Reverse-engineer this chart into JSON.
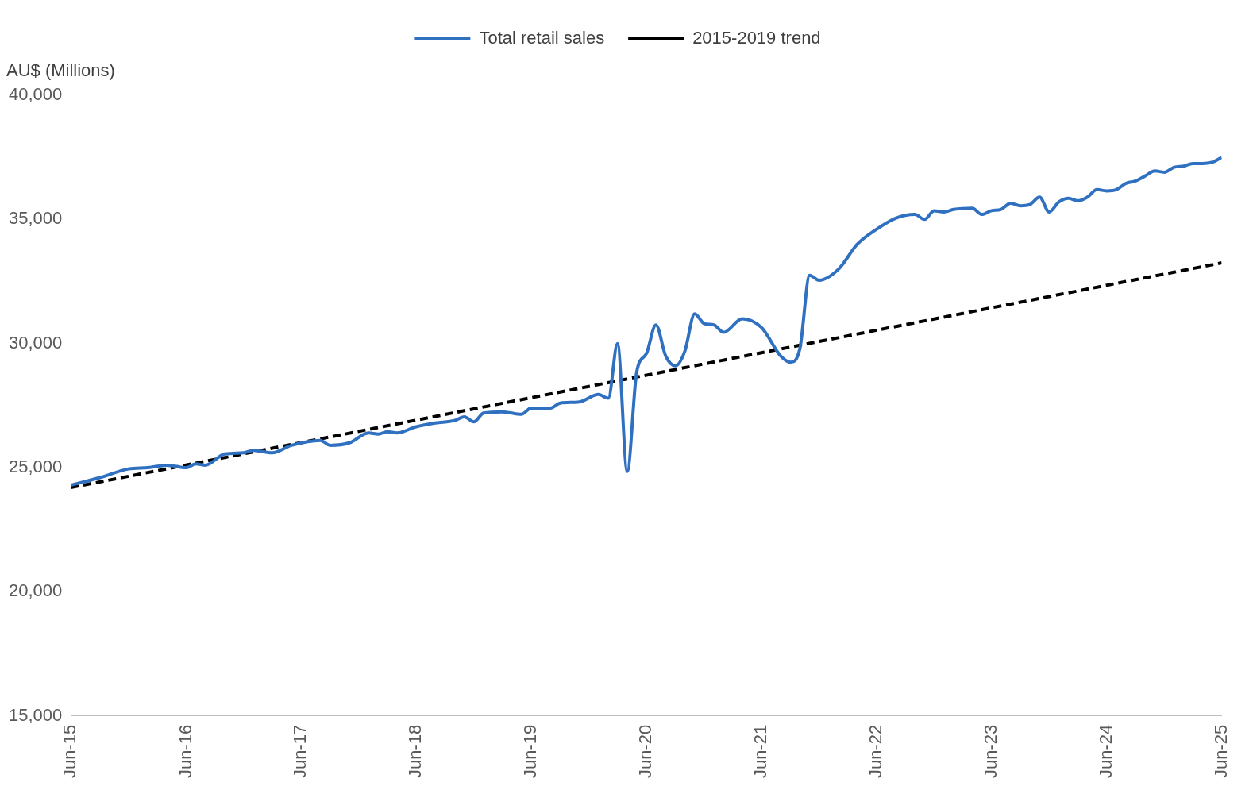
{
  "chart_data": {
    "type": "line",
    "ylabel": "AU$ (Millions)",
    "legend": "top",
    "grid": false,
    "marker": "none",
    "xlim": [
      "2015-06",
      "2025-06"
    ],
    "xticks": [
      {
        "value": "2015-06",
        "label": "Jun-15"
      },
      {
        "value": "2016-06",
        "label": "Jun-16"
      },
      {
        "value": "2017-06",
        "label": "Jun-17"
      },
      {
        "value": "2018-06",
        "label": "Jun-18"
      },
      {
        "value": "2019-06",
        "label": "Jun-19"
      },
      {
        "value": "2020-06",
        "label": "Jun-20"
      },
      {
        "value": "2021-06",
        "label": "Jun-21"
      },
      {
        "value": "2022-06",
        "label": "Jun-22"
      },
      {
        "value": "2023-06",
        "label": "Jun-23"
      },
      {
        "value": "2024-06",
        "label": "Jun-24"
      },
      {
        "value": "2025-06",
        "label": "Jun-25"
      }
    ],
    "ylim": [
      15000,
      40000
    ],
    "yticks": [
      {
        "value": 15000,
        "label": "15,000"
      },
      {
        "value": 20000,
        "label": "20,000"
      },
      {
        "value": 25000,
        "label": "25,000"
      },
      {
        "value": 30000,
        "label": "30,000"
      },
      {
        "value": 35000,
        "label": "35,000"
      },
      {
        "value": 40000,
        "label": "40,000"
      }
    ],
    "series": [
      {
        "name": "Total retail sales",
        "color": "#3070c0",
        "line_style": "solid",
        "x": [
          "2015-06",
          "2015-09",
          "2015-12",
          "2016-02",
          "2016-04",
          "2016-06",
          "2016-07",
          "2016-08",
          "2016-10",
          "2016-12",
          "2017-01",
          "2017-03",
          "2017-05",
          "2017-08",
          "2017-09",
          "2017-11",
          "2018-01",
          "2018-02",
          "2018-03",
          "2018-04",
          "2018-06",
          "2018-08",
          "2018-10",
          "2018-11",
          "2018-12",
          "2019-01",
          "2019-03",
          "2019-05",
          "2019-06",
          "2019-08",
          "2019-09",
          "2019-11",
          "2020-01",
          "2020-02",
          "2020-03",
          "2020-04",
          "2020-05",
          "2020-06",
          "2020-07",
          "2020-08",
          "2020-09",
          "2020-10",
          "2020-11",
          "2020-12",
          "2021-01",
          "2021-02",
          "2021-04",
          "2021-06",
          "2021-08",
          "2021-09",
          "2021-10",
          "2021-11",
          "2021-12",
          "2022-02",
          "2022-04",
          "2022-06",
          "2022-08",
          "2022-10",
          "2022-11",
          "2022-12",
          "2023-01",
          "2023-02",
          "2023-04",
          "2023-05",
          "2023-06",
          "2023-07",
          "2023-08",
          "2023-09",
          "2023-10",
          "2023-11",
          "2023-12",
          "2024-01",
          "2024-02",
          "2024-03",
          "2024-04",
          "2024-05",
          "2024-06",
          "2024-07",
          "2024-08",
          "2024-09",
          "2024-10",
          "2024-11",
          "2024-12",
          "2025-01",
          "2025-02",
          "2025-03",
          "2025-04",
          "2025-05",
          "2025-06"
        ],
        "values": [
          24300,
          24600,
          24950,
          25000,
          25100,
          25000,
          25150,
          25100,
          25550,
          25600,
          25700,
          25600,
          25900,
          26100,
          25900,
          26000,
          26400,
          26350,
          26450,
          26400,
          26650,
          26800,
          26900,
          27050,
          26850,
          27200,
          27250,
          27150,
          27400,
          27400,
          27600,
          27650,
          27950,
          27800,
          30000,
          24850,
          28850,
          29600,
          30750,
          29500,
          29100,
          29700,
          31200,
          30800,
          30750,
          30450,
          31000,
          30650,
          29500,
          29250,
          29800,
          32750,
          32550,
          33000,
          34000,
          34600,
          35050,
          35200,
          35000,
          35350,
          35300,
          35400,
          35450,
          35200,
          35350,
          35400,
          35650,
          35550,
          35600,
          35900,
          35300,
          35700,
          35850,
          35750,
          35900,
          36200,
          36150,
          36200,
          36450,
          36550,
          36750,
          36950,
          36900,
          37100,
          37150,
          37250,
          37250,
          37300,
          37500
        ]
      },
      {
        "name": "2015-2019 trend",
        "color": "#000000",
        "line_style": "dashed",
        "x": [
          "2015-06",
          "2025-06"
        ],
        "values": [
          24200,
          33250
        ]
      }
    ]
  }
}
